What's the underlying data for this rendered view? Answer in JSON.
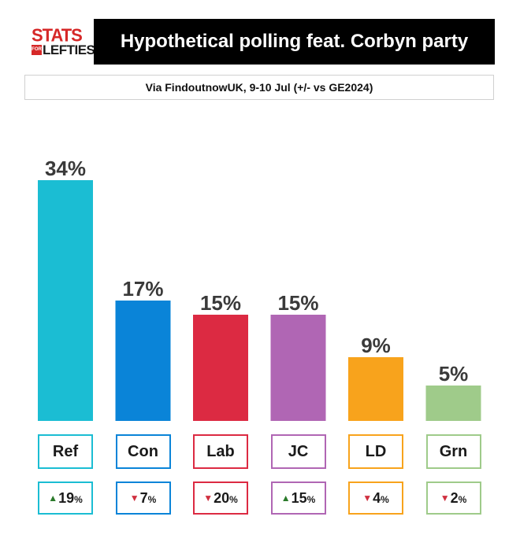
{
  "logo": {
    "line1": "STATS",
    "for": "FOR",
    "line2": "LEFTIES"
  },
  "title": "Hypothetical polling feat. Corbyn party",
  "subtitle": "Via FindoutnowUK, 9-10 Jul (+/- vs GE2024)",
  "chart_data": {
    "type": "bar",
    "title": "Hypothetical polling feat. Corbyn party",
    "subtitle": "Via FindoutnowUK, 9-10 Jul (+/- vs GE2024)",
    "categories": [
      "Ref",
      "Con",
      "Lab",
      "JC",
      "LD",
      "Grn"
    ],
    "values": [
      34,
      17,
      15,
      15,
      9,
      5
    ],
    "value_labels": [
      "34%",
      "17%",
      "15%",
      "15%",
      "9%",
      "5%"
    ],
    "changes": [
      19,
      -7,
      -20,
      15,
      -4,
      -2
    ],
    "change_labels": [
      "19",
      "7",
      "20",
      "15",
      "4",
      "2"
    ],
    "change_unit": "%",
    "colors": [
      "#1bbdd3",
      "#0a84d8",
      "#dc2a42",
      "#b066b4",
      "#f8a31c",
      "#9fcb8a"
    ],
    "up_color": "#2a7a2a",
    "down_color": "#d03040",
    "ylim": [
      0,
      34
    ],
    "grid": false
  }
}
